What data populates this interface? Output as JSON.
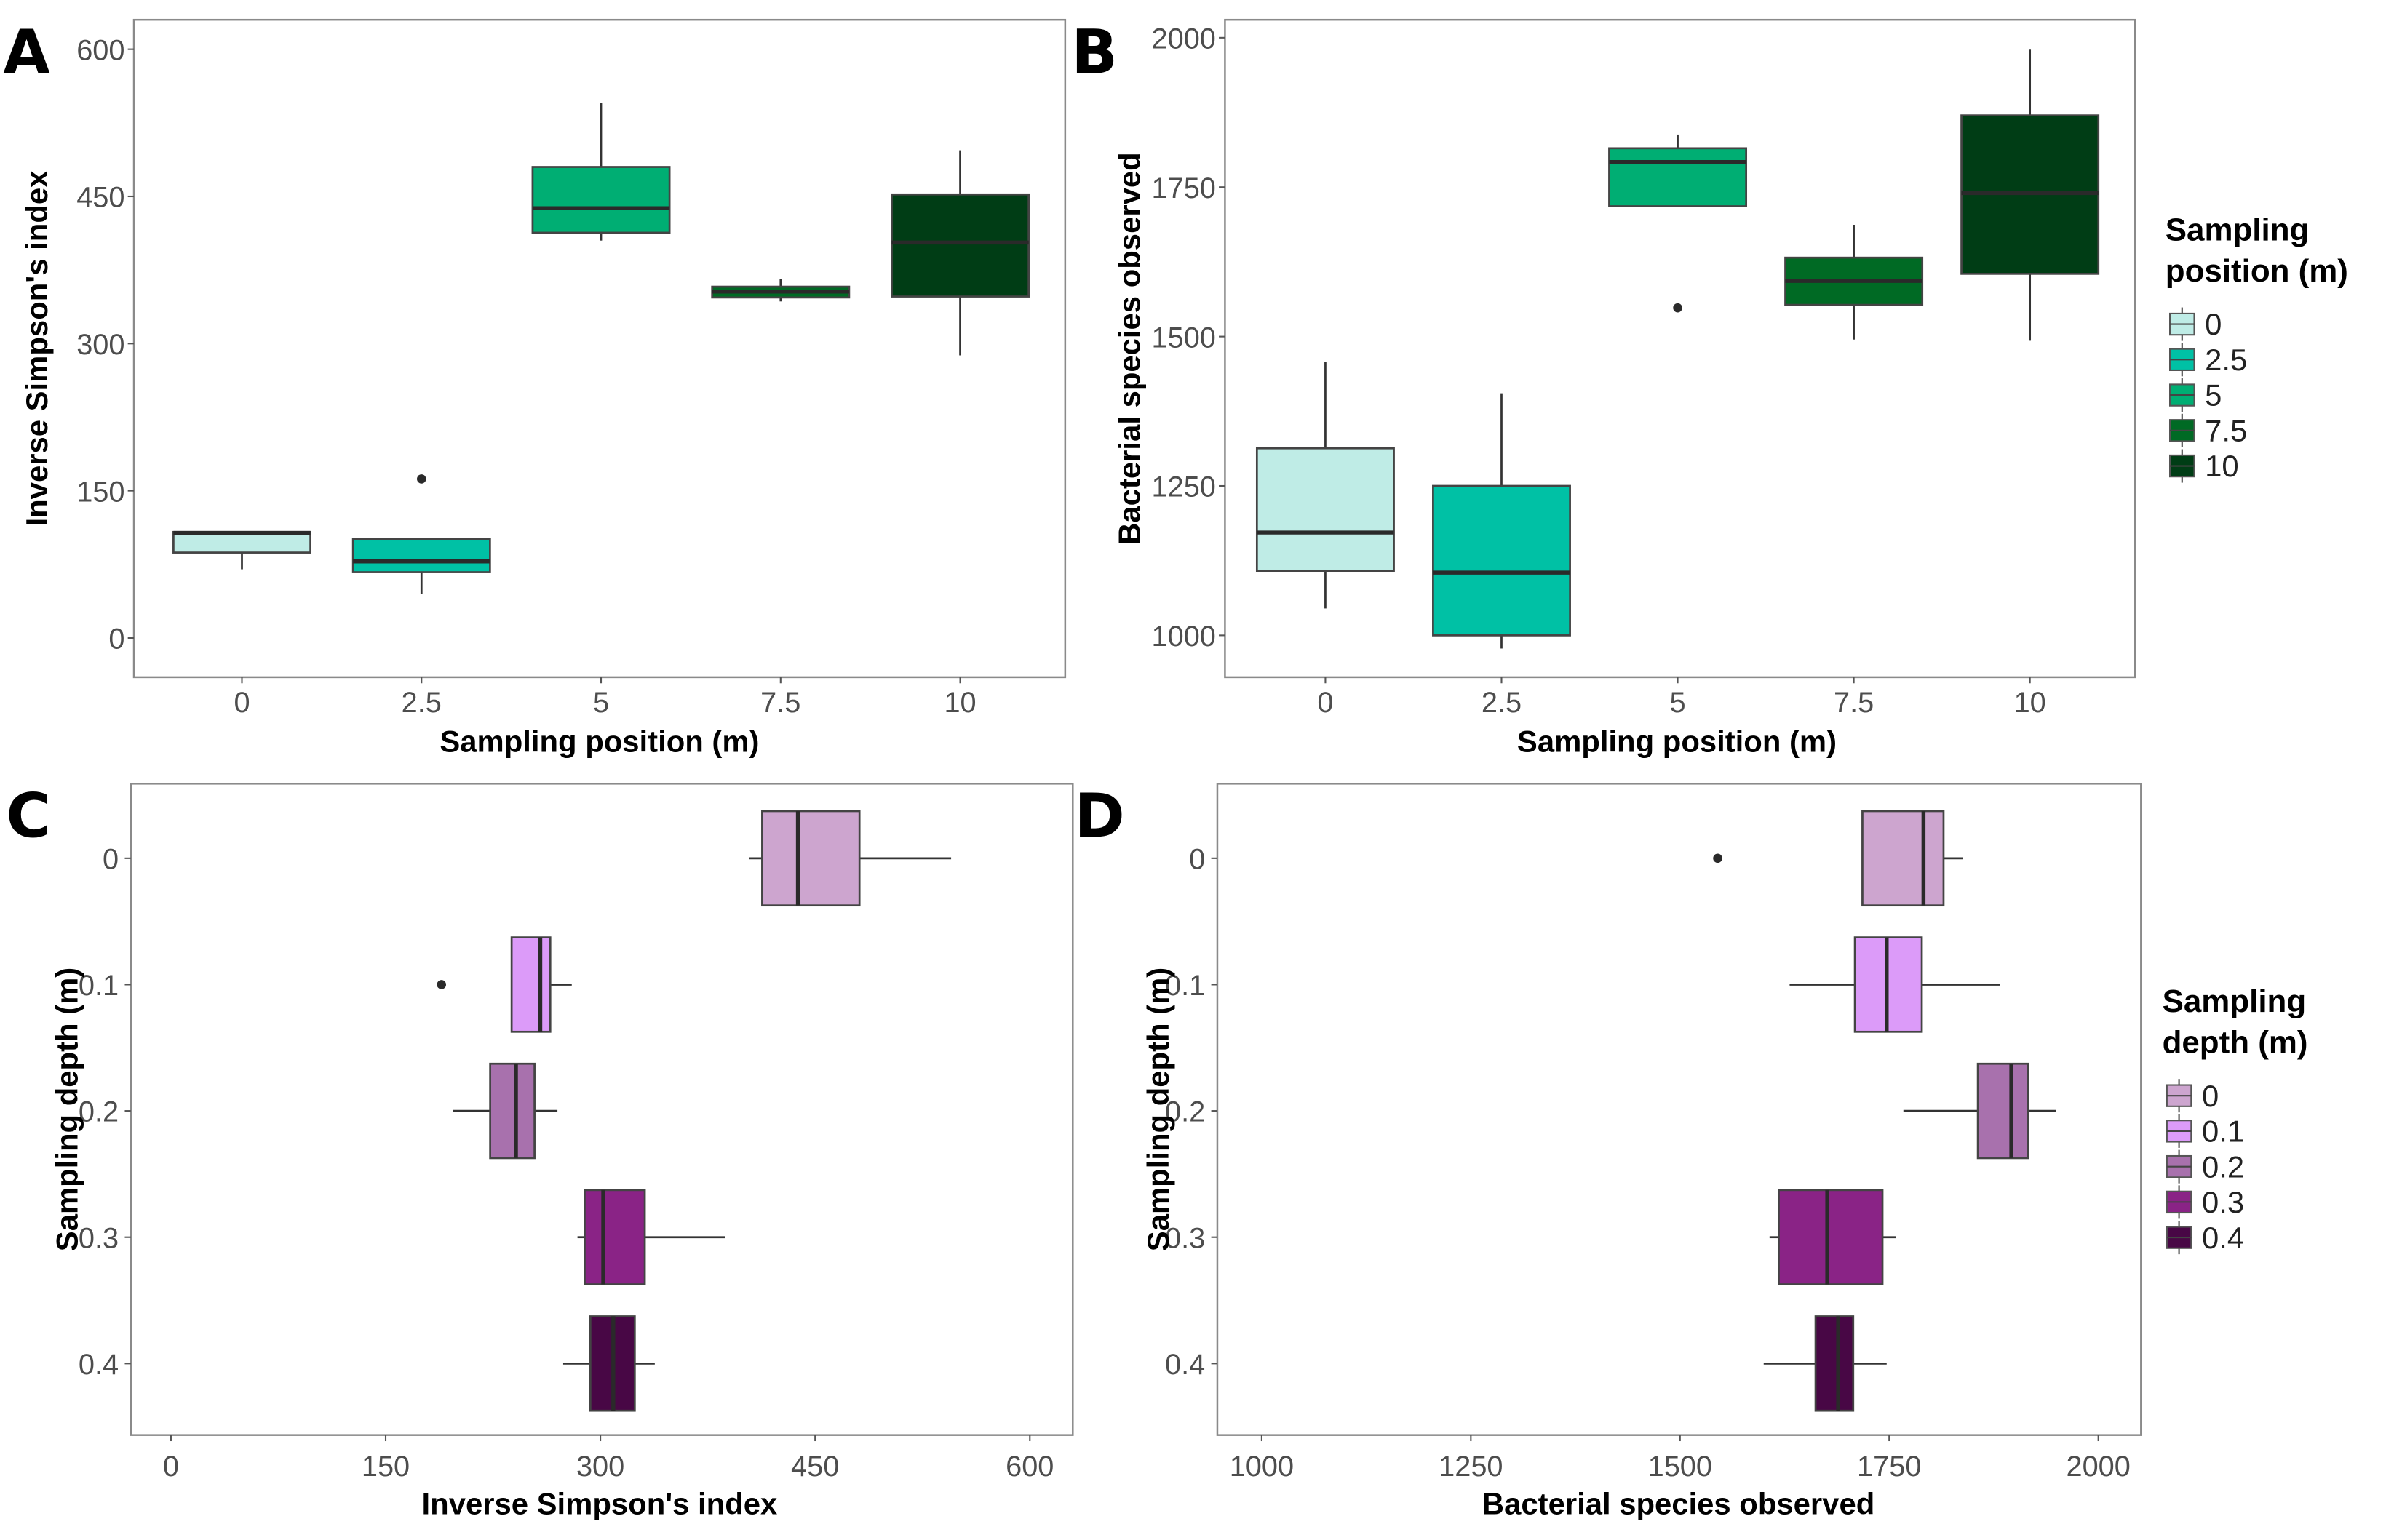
{
  "chart_data": [
    {
      "panel": "A",
      "type": "boxplot",
      "orientation": "vertical",
      "xlabel": "Sampling position (m)",
      "ylabel": "Inverse Simpson's index",
      "categories": [
        "0",
        "2.5",
        "5",
        "7.5",
        "10"
      ],
      "yticks": [
        0,
        150,
        300,
        450,
        600
      ],
      "ylim": [
        -40,
        630
      ],
      "legend": null,
      "colors": [
        "#bfece6",
        "#00c1a5",
        "#00ae73",
        "#006a24",
        "#003d15"
      ],
      "boxes": [
        {
          "min": 70,
          "q1": 87,
          "median": 107,
          "q3": 108,
          "max": 108,
          "outliers": []
        },
        {
          "min": 45,
          "q1": 67,
          "median": 78,
          "q3": 101,
          "max": 101,
          "outliers": [
            162
          ]
        },
        {
          "min": 405,
          "q1": 413,
          "median": 438,
          "q3": 480,
          "max": 545,
          "outliers": []
        },
        {
          "min": 343,
          "q1": 347,
          "median": 353,
          "q3": 358,
          "max": 366,
          "outliers": []
        },
        {
          "min": 288,
          "q1": 348,
          "median": 403,
          "q3": 452,
          "max": 497,
          "outliers": []
        }
      ]
    },
    {
      "panel": "B",
      "type": "boxplot",
      "orientation": "vertical",
      "xlabel": "Sampling position (m)",
      "ylabel": "Bacterial species observed",
      "categories": [
        "0",
        "2.5",
        "5",
        "7.5",
        "10"
      ],
      "yticks": [
        1000,
        1250,
        1500,
        1750,
        2000
      ],
      "ylim": [
        930,
        2030
      ],
      "legend": {
        "title": [
          "Sampling",
          "position (m)"
        ],
        "items": [
          "0",
          "2.5",
          "5",
          "7.5",
          "10"
        ],
        "position": "right"
      },
      "colors": [
        "#bfece6",
        "#00c1a5",
        "#00ae73",
        "#006a24",
        "#003d15"
      ],
      "boxes": [
        {
          "min": 1045,
          "q1": 1108,
          "median": 1172,
          "q3": 1313,
          "max": 1457,
          "outliers": []
        },
        {
          "min": 978,
          "q1": 1000,
          "median": 1105,
          "q3": 1250,
          "max": 1405,
          "outliers": []
        },
        {
          "min": 1718,
          "q1": 1718,
          "median": 1792,
          "q3": 1815,
          "max": 1838,
          "outliers": [
            1548
          ]
        },
        {
          "min": 1495,
          "q1": 1553,
          "median": 1593,
          "q3": 1632,
          "max": 1687,
          "outliers": []
        },
        {
          "min": 1493,
          "q1": 1605,
          "median": 1740,
          "q3": 1870,
          "max": 1980,
          "outliers": []
        }
      ]
    },
    {
      "panel": "C",
      "type": "boxplot",
      "orientation": "horizontal",
      "xlabel": "Inverse Simpson's index",
      "ylabel": "Sampling depth (m)",
      "categories": [
        "0",
        "0.1",
        "0.2",
        "0.3",
        "0.4"
      ],
      "xticks": [
        0,
        150,
        300,
        450,
        600
      ],
      "xlim": [
        -28,
        630
      ],
      "legend": null,
      "colors": [
        "#cda5cf",
        "#dc9bf9",
        "#a871ad",
        "#8a2386",
        "#480745"
      ],
      "boxes": [
        {
          "min": 404,
          "q1": 413,
          "median": 438,
          "q3": 481,
          "max": 545,
          "outliers": []
        },
        {
          "min": 238,
          "q1": 238,
          "median": 258,
          "q3": 265,
          "max": 280,
          "outliers": [
            189
          ]
        },
        {
          "min": 197,
          "q1": 223,
          "median": 241,
          "q3": 254,
          "max": 270,
          "outliers": []
        },
        {
          "min": 284,
          "q1": 289,
          "median": 302,
          "q3": 331,
          "max": 387,
          "outliers": []
        },
        {
          "min": 274,
          "q1": 293,
          "median": 309,
          "q3": 324,
          "max": 338,
          "outliers": []
        }
      ]
    },
    {
      "panel": "D",
      "type": "boxplot",
      "orientation": "horizontal",
      "xlabel": "Bacterial species observed",
      "ylabel": "Sampling depth (m)",
      "categories": [
        "0",
        "0.1",
        "0.2",
        "0.3",
        "0.4"
      ],
      "xticks": [
        1000,
        1250,
        1500,
        1750,
        2000
      ],
      "xlim": [
        947,
        2051
      ],
      "legend": {
        "title": [
          "Sampling",
          "depth (m)"
        ],
        "items": [
          "0",
          "0.1",
          "0.2",
          "0.3",
          "0.4"
        ],
        "position": "right"
      },
      "colors": [
        "#cda5cf",
        "#dc9bf9",
        "#a871ad",
        "#8a2386",
        "#480745"
      ],
      "boxes": [
        {
          "min": 1718,
          "q1": 1718,
          "median": 1791,
          "q3": 1815,
          "max": 1838,
          "outliers": [
            1545
          ]
        },
        {
          "min": 1631,
          "q1": 1709,
          "median": 1747,
          "q3": 1789,
          "max": 1882,
          "outliers": []
        },
        {
          "min": 1767,
          "q1": 1856,
          "median": 1896,
          "q3": 1916,
          "max": 1949,
          "outliers": []
        },
        {
          "min": 1607,
          "q1": 1618,
          "median": 1676,
          "q3": 1742,
          "max": 1758,
          "outliers": []
        },
        {
          "min": 1600,
          "q1": 1662,
          "median": 1689,
          "q3": 1707,
          "max": 1747,
          "outliers": []
        }
      ]
    }
  ]
}
